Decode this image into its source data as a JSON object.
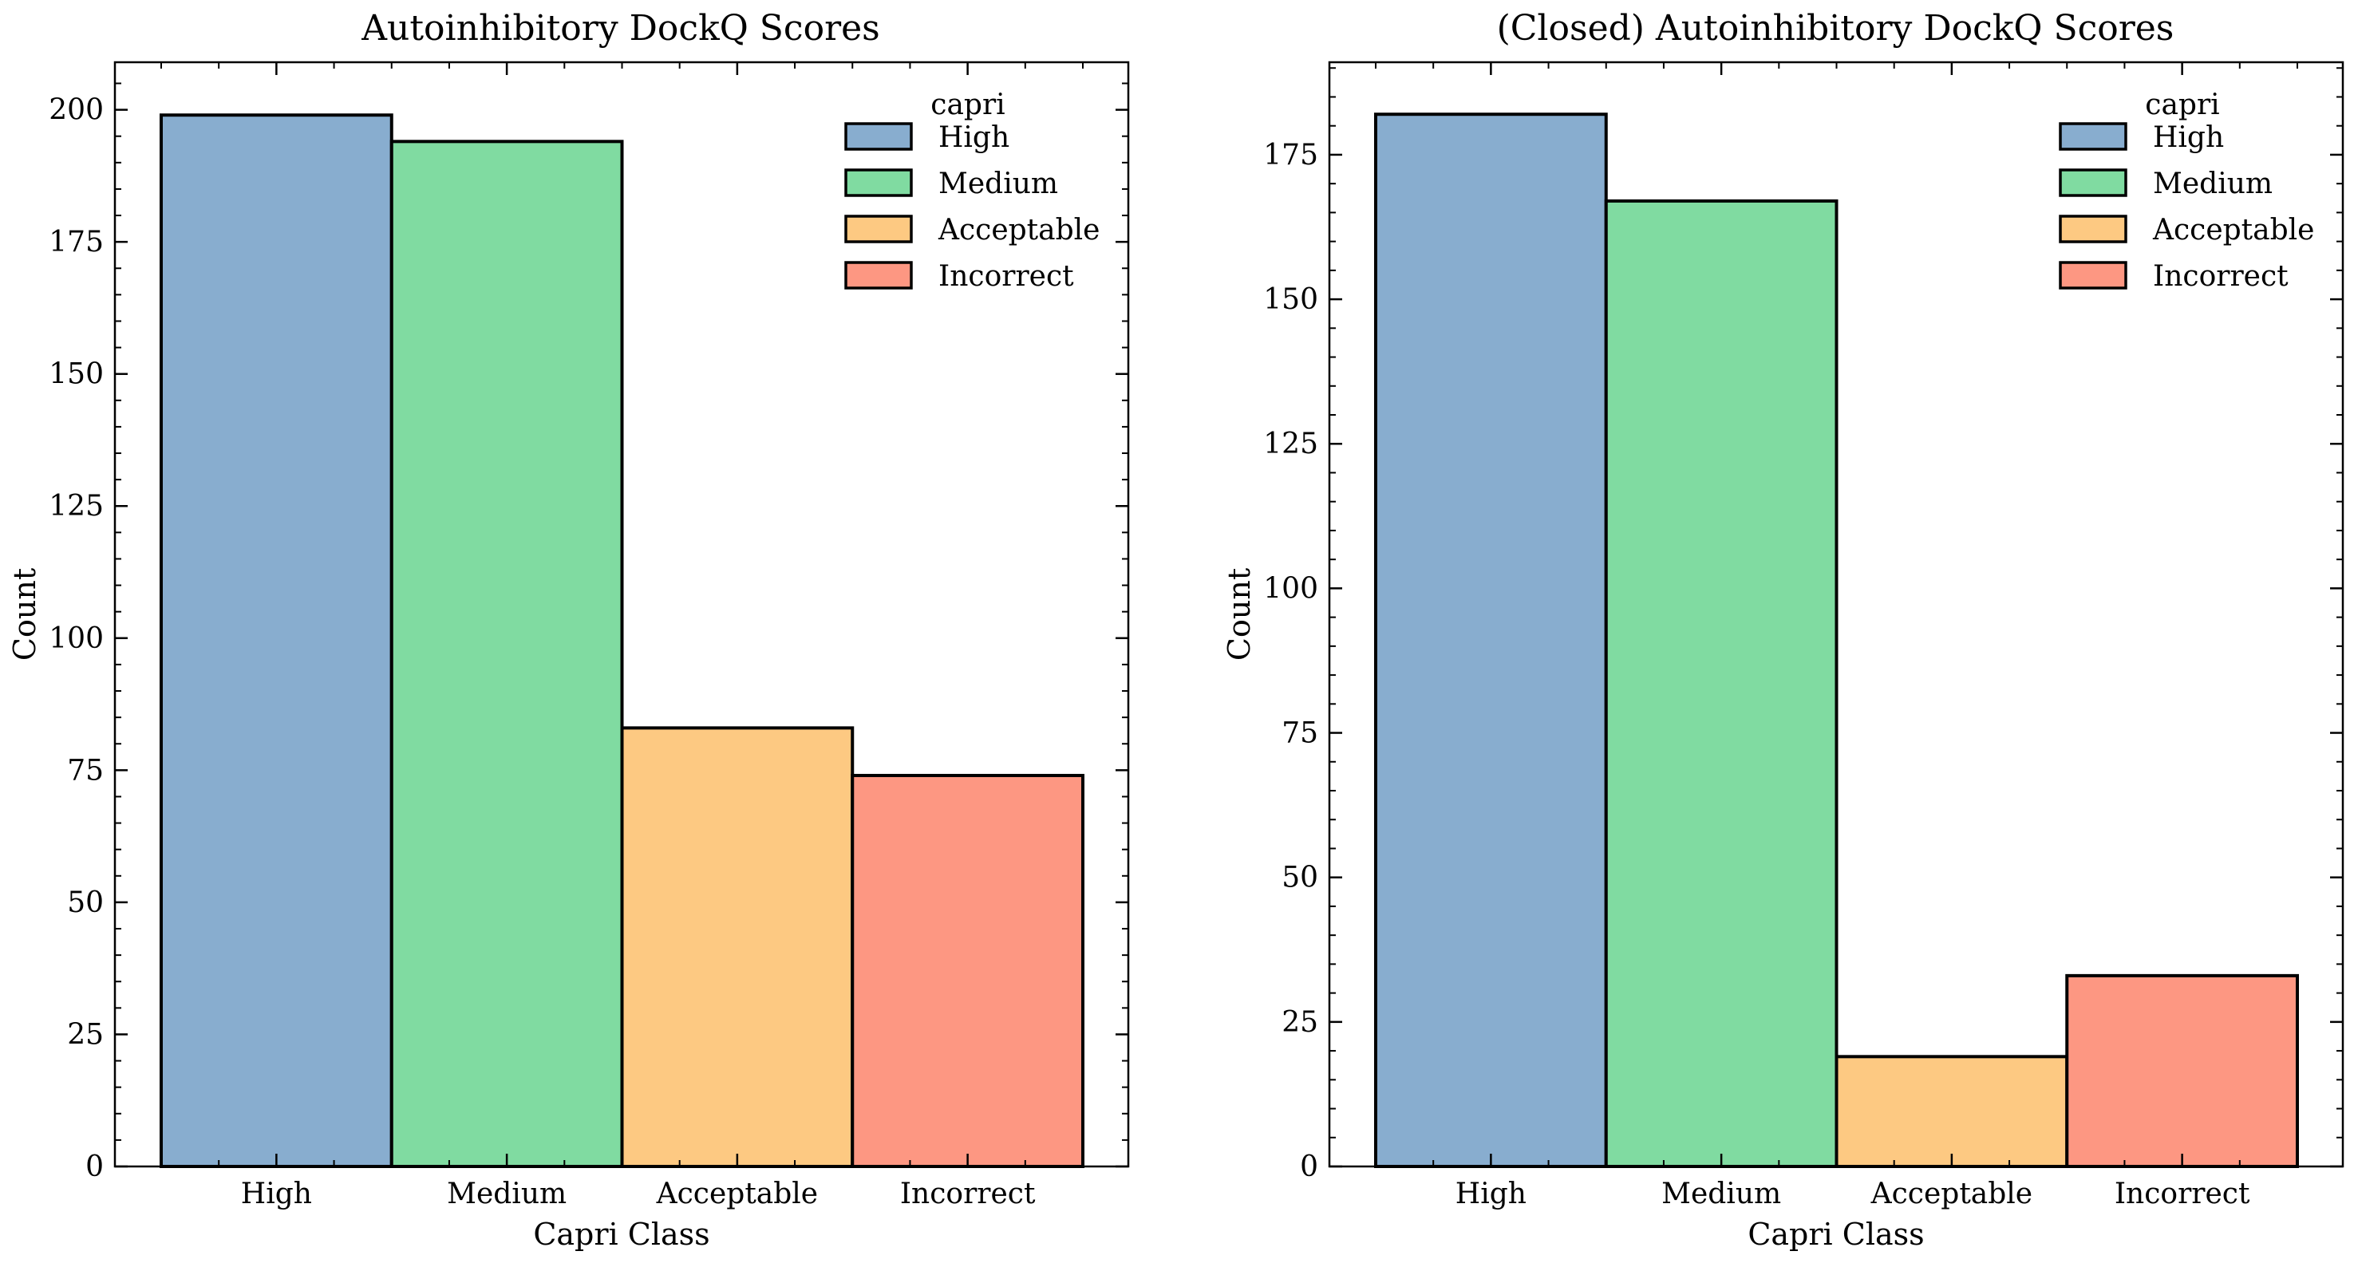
{
  "colors": {
    "High": "#88adcf",
    "Medium": "#80dba1",
    "Acceptable": "#fdc982",
    "Incorrect": "#fd9782",
    "edge": "#000000"
  },
  "chart_data": [
    {
      "type": "bar",
      "title": "Autoinhibitory DockQ Scores",
      "xlabel": "Capri Class",
      "ylabel": "Count",
      "categories": [
        "High",
        "Medium",
        "Acceptable",
        "Incorrect"
      ],
      "values": [
        199,
        194,
        83,
        74
      ],
      "ylim": [
        0,
        209
      ],
      "yticks": [
        0,
        25,
        50,
        75,
        100,
        125,
        150,
        175,
        200
      ],
      "legend": {
        "title": "capri",
        "entries": [
          "High",
          "Medium",
          "Acceptable",
          "Incorrect"
        ],
        "position": "top-right"
      },
      "grid": false
    },
    {
      "type": "bar",
      "title": "(Closed) Autoinhibitory DockQ Scores",
      "xlabel": "Capri Class",
      "ylabel": "Count",
      "categories": [
        "High",
        "Medium",
        "Acceptable",
        "Incorrect"
      ],
      "values": [
        182,
        167,
        19,
        33
      ],
      "ylim": [
        0,
        191
      ],
      "yticks": [
        0,
        25,
        50,
        75,
        100,
        125,
        150,
        175
      ],
      "legend": {
        "title": "capri",
        "entries": [
          "High",
          "Medium",
          "Acceptable",
          "Incorrect"
        ],
        "position": "top-right"
      },
      "grid": false
    }
  ]
}
